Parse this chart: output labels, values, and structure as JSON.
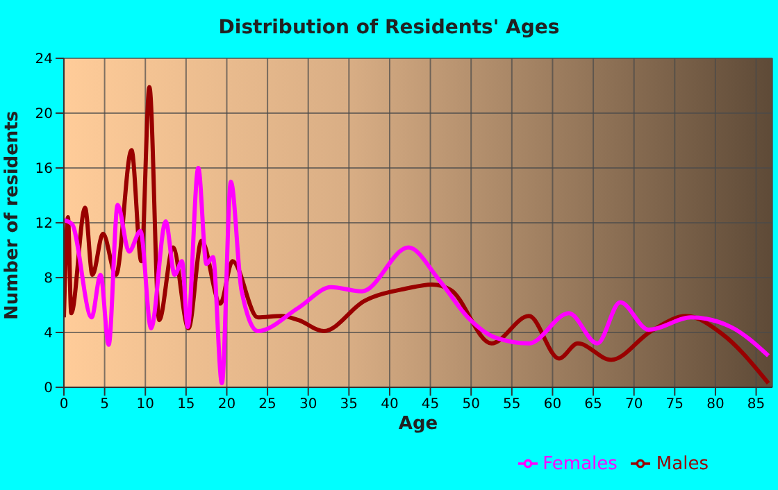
{
  "chart_data": {
    "type": "line",
    "title": "Distribution of Residents' Ages",
    "xlabel": "Age",
    "ylabel": "Number of residents",
    "xlim": [
      0,
      87
    ],
    "xticks": [
      0,
      5,
      10,
      15,
      20,
      25,
      30,
      35,
      40,
      45,
      50,
      55,
      60,
      65,
      70,
      75,
      80,
      85
    ],
    "ylim": [
      0,
      24
    ],
    "yticks": [
      0,
      4,
      8,
      12,
      16,
      20,
      24
    ],
    "grid": true,
    "legend": "bottom",
    "series": [
      {
        "name": "Males",
        "color": "#990000",
        "x": [
          0,
          0.5,
          0.9,
          2.6,
          3.5,
          4.8,
          6.4,
          8.3,
          9.5,
          10.5,
          11.7,
          13.4,
          15.3,
          16.9,
          19.2,
          20.7,
          23.8,
          26.7,
          28.8,
          31.9,
          36.9,
          42,
          45.2,
          47.5,
          52.5,
          57.1,
          60.8,
          63.1,
          67.2,
          72.1,
          76.4,
          80.8,
          86.5
        ],
        "values": [
          5.1,
          12.4,
          5.4,
          13.1,
          8.2,
          11.2,
          8.2,
          17.3,
          9.2,
          21.9,
          4.9,
          10.2,
          4.3,
          10.7,
          6.1,
          9.2,
          5.1,
          5.2,
          4.9,
          4.1,
          6.3,
          7.2,
          7.5,
          7.1,
          3.2,
          5.2,
          2.1,
          3.2,
          2.0,
          4.1,
          5.2,
          3.9,
          0.3
        ]
      },
      {
        "name": "Females",
        "color": "#ff00ff",
        "x": [
          0,
          1,
          3.4,
          4.5,
          5.5,
          6.6,
          8,
          9.4,
          10.7,
          12.5,
          13.6,
          14.5,
          15.2,
          16.5,
          17.5,
          18.3,
          19.4,
          20.5,
          21.8,
          23.8,
          28.8,
          32.8,
          36.6,
          42.3,
          46.1,
          49.6,
          53.1,
          57.1,
          62,
          65.5,
          68.3,
          71.8,
          77,
          81.9,
          86.5
        ],
        "values": [
          12.2,
          11.9,
          5.1,
          8.2,
          3.1,
          13.3,
          9.9,
          11.4,
          4.3,
          12.1,
          8.2,
          9.2,
          4.4,
          16,
          9,
          9.5,
          0.3,
          15,
          7.1,
          4.1,
          5.8,
          7.3,
          7.0,
          10.2,
          7.8,
          5.1,
          3.6,
          3.2,
          5.4,
          3.2,
          6.2,
          4.2,
          5.1,
          4.4,
          2.3
        ]
      }
    ]
  }
}
